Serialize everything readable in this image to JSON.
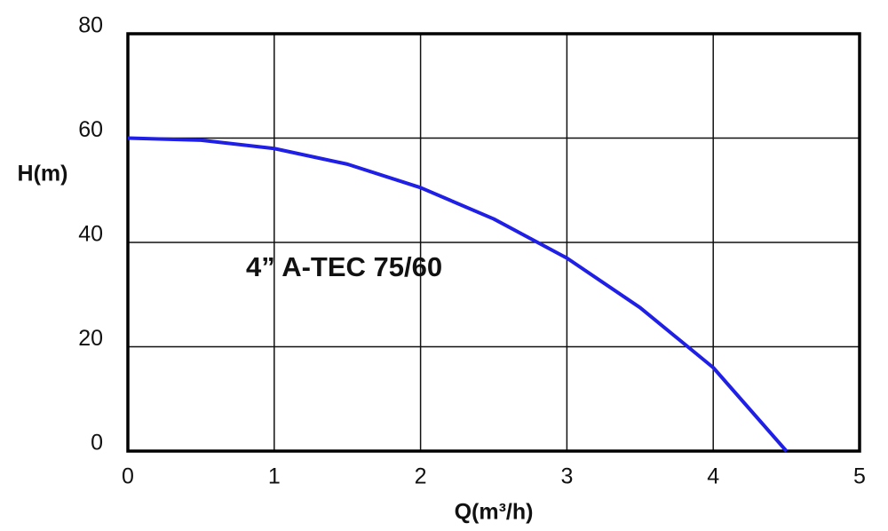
{
  "chart_data": {
    "type": "line",
    "y_label": "H(m)",
    "x_label": "Q(m³/h)",
    "annotation": "4” A-TEC 75/60",
    "x": [
      0,
      0.5,
      1,
      1.5,
      2,
      2.5,
      3,
      3.5,
      4,
      4.5
    ],
    "series": [
      {
        "color": "#1f1fe6",
        "values": [
          60,
          59.6,
          58,
          55,
          50.5,
          44.5,
          37,
          27.5,
          16,
          0
        ]
      }
    ],
    "xlim": [
      0,
      5
    ],
    "xticks": [
      0,
      1,
      2,
      3,
      4,
      5
    ],
    "ylim": [
      0,
      80
    ],
    "yticks": [
      0,
      20,
      40,
      60,
      80
    ],
    "grid": true
  }
}
